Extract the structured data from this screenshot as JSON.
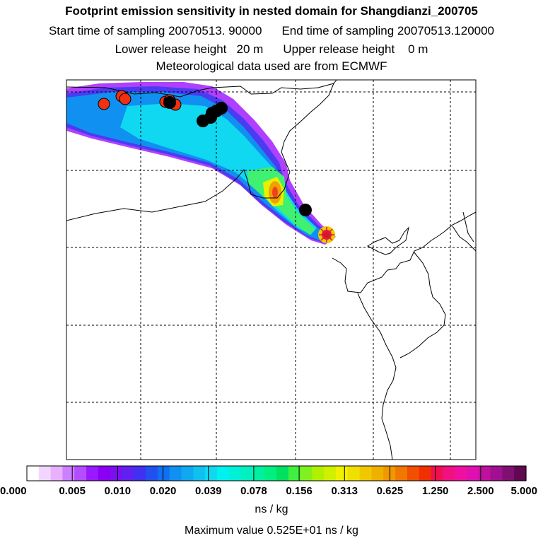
{
  "header": {
    "title": "Footprint emission sensitivity in nested domain for Shangdianzi_200705",
    "start_label": "Start time of sampling 20070513. 90000",
    "end_label": "End time of sampling 20070513.120000",
    "lower_label": "Lower release height   20 m",
    "upper_label": "Upper release height    0 m",
    "met_label": "Meteorological data used are from ECMWF"
  },
  "colorbar": {
    "tick_labels": [
      "0.000",
      "0.005",
      "0.010",
      "0.020",
      "0.039",
      "0.078",
      "0.156",
      "0.313",
      "0.625",
      "1.250",
      "2.500",
      "5.000"
    ],
    "colors": [
      "#ffffff",
      "#f3d6ff",
      "#e8b0ff",
      "#cc80ff",
      "#b44cff",
      "#9a1aff",
      "#8a00f5",
      "#7a10f0",
      "#6020f0",
      "#4030f0",
      "#2050f0",
      "#1070f0",
      "#1090f0",
      "#10a8f0",
      "#10c0f0",
      "#10d8f0",
      "#00f0f0",
      "#00f0d8",
      "#00f0c0",
      "#00f0a0",
      "#00f080",
      "#00e060",
      "#40f040",
      "#80f020",
      "#b0f000",
      "#d0f000",
      "#f0f000",
      "#f0e000",
      "#f0c800",
      "#f0b000",
      "#f09800",
      "#f07800",
      "#f05000",
      "#f03000",
      "#f01050",
      "#f01080",
      "#f010a0",
      "#e010b0",
      "#c010a0",
      "#a01090",
      "#801070",
      "#600850"
    ],
    "units": "ns / kg",
    "max_value": "Maximum value  0.525E+01 ns / kg"
  },
  "map": {
    "background": "#ffffff",
    "receptor_marker_color": "#cc2020",
    "markers_black_count": 8,
    "markers_red_count": 6
  }
}
